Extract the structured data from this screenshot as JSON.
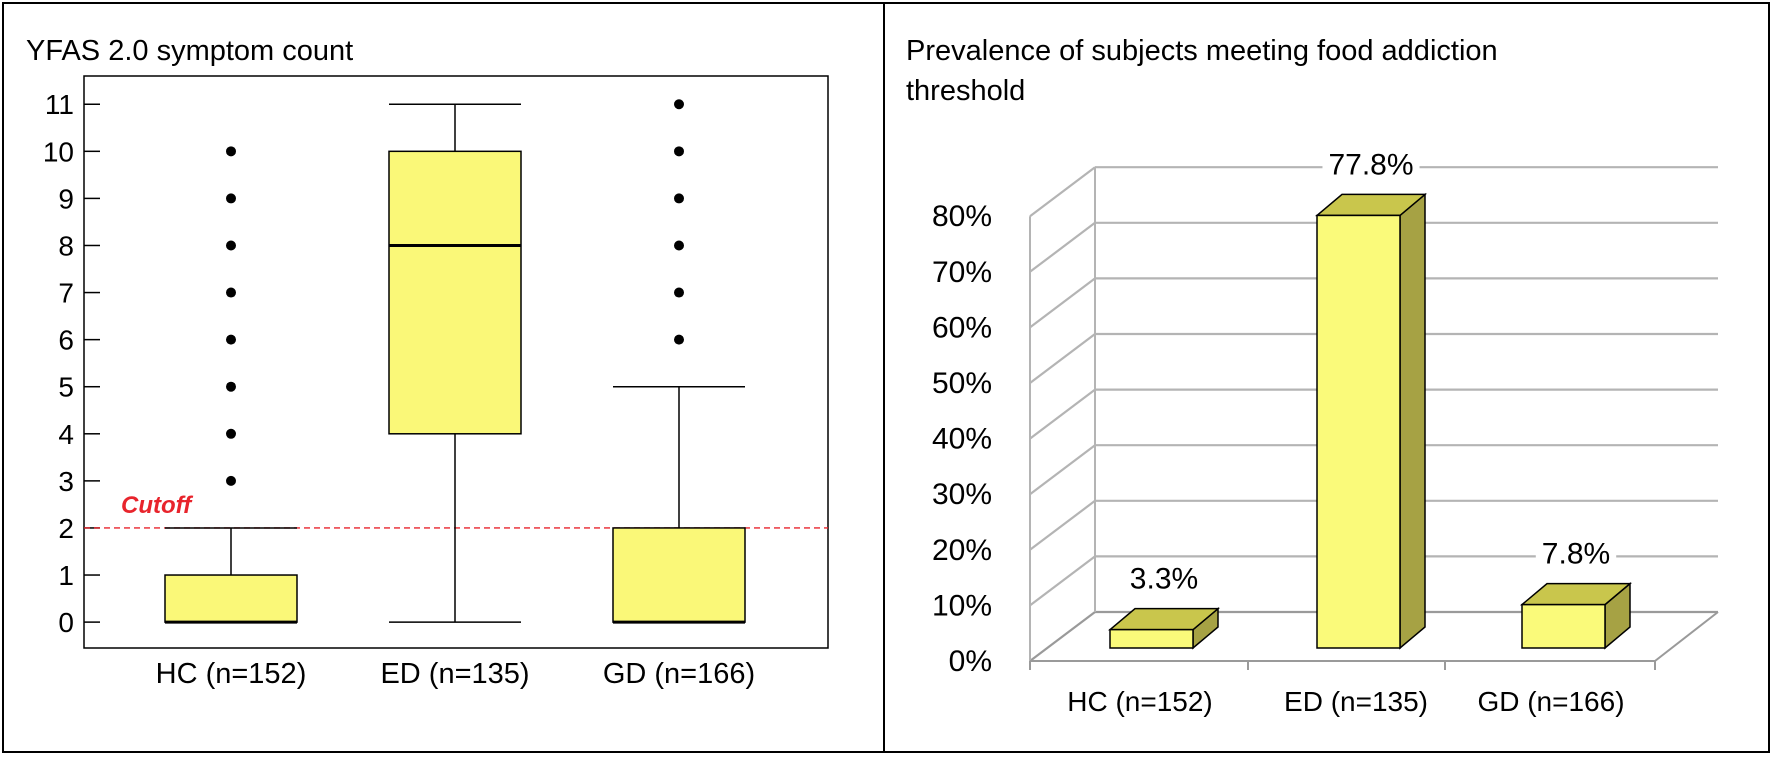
{
  "chart_data": [
    {
      "type": "box",
      "title": "YFAS 2.0 symptom count",
      "categories": [
        "HC (n=152)",
        "ED (n=135)",
        "GD (n=166)"
      ],
      "y_ticks": [
        0,
        1,
        2,
        3,
        4,
        5,
        6,
        7,
        8,
        9,
        10,
        11
      ],
      "ylim": [
        -0.55,
        11.6
      ],
      "boxes": [
        {
          "category": "HC (n=152)",
          "whisker_low": 0,
          "q1": 0,
          "median": 0,
          "q3": 1,
          "whisker_high": 2,
          "outliers": [
            3,
            4,
            5,
            6,
            7,
            8,
            9,
            10
          ]
        },
        {
          "category": "ED (n=135)",
          "whisker_low": 0,
          "q1": 4,
          "median": 8,
          "q3": 10,
          "whisker_high": 11,
          "outliers": []
        },
        {
          "category": "GD (n=166)",
          "whisker_low": 0,
          "q1": 0,
          "median": 0,
          "q3": 2,
          "whisker_high": 5,
          "outliers": [
            6,
            7,
            8,
            9,
            10,
            11
          ]
        }
      ],
      "reference_line": {
        "value": 2,
        "label": "Cutoff",
        "color": "#e8242c"
      },
      "box_fill": "#faf878"
    },
    {
      "type": "bar",
      "style": "3d",
      "title_lines": [
        "Prevalence of subjects meeting food addiction",
        "threshold"
      ],
      "categories": [
        "HC (n=152)",
        "ED (n=135)",
        "GD (n=166)"
      ],
      "values": [
        3.3,
        77.8,
        7.8
      ],
      "value_labels": [
        "3.3%",
        "77.8%",
        "7.8%"
      ],
      "y_ticks": [
        "0%",
        "10%",
        "20%",
        "30%",
        "40%",
        "50%",
        "60%",
        "70%",
        "80%"
      ],
      "ylim": [
        0,
        80
      ],
      "grid": true,
      "bar_colors": {
        "front": "#fafa7a",
        "top": "#c9c64c",
        "side": "#a6a244"
      }
    }
  ]
}
